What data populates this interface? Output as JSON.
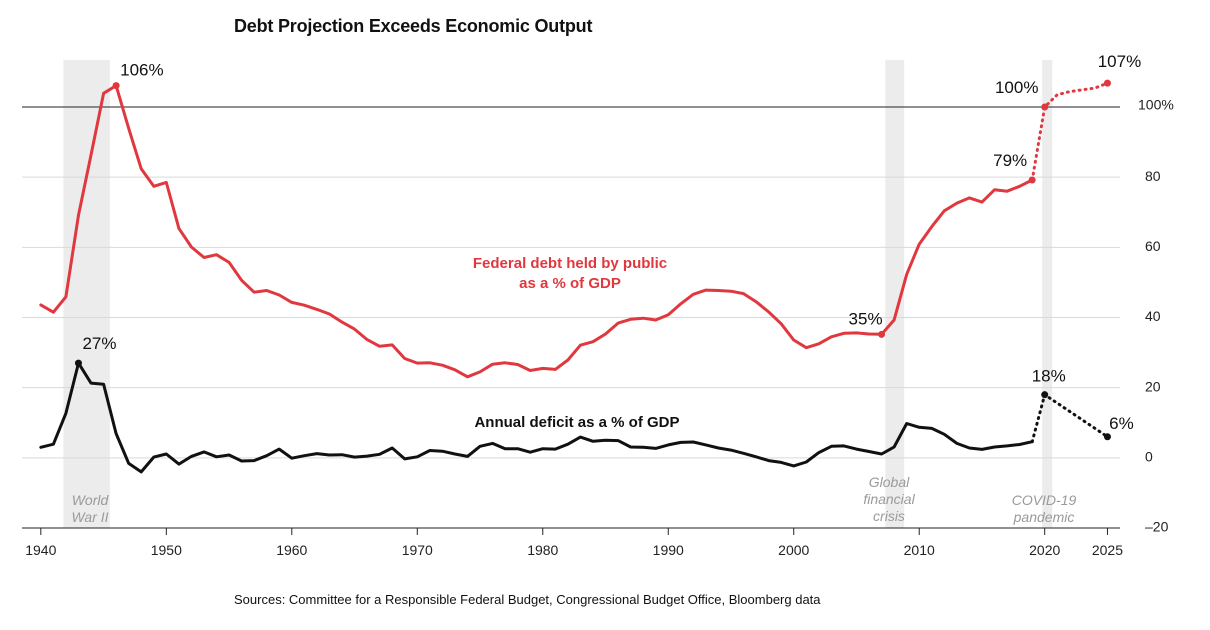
{
  "chart_data": {
    "type": "line",
    "title": "Debt Projection Exceeds Economic Output",
    "source": "Sources: Committee for a Responsible Federal Budget, Congressional Budget Office, Bloomberg data",
    "xlim": [
      1938.5,
      2026
    ],
    "ylim": [
      -20,
      110
    ],
    "x_ticks": [
      1940,
      1950,
      1960,
      1970,
      1980,
      1990,
      2000,
      2010,
      2020,
      2025
    ],
    "y_ticks": [
      {
        "value": 100,
        "label": "100%"
      },
      {
        "value": 80,
        "label": "80"
      },
      {
        "value": 60,
        "label": "60"
      },
      {
        "value": 40,
        "label": "40"
      },
      {
        "value": 20,
        "label": "20"
      },
      {
        "value": 0,
        "label": "0"
      },
      {
        "value": -20,
        "label": "–20"
      }
    ],
    "reference_line": 100,
    "colors": {
      "debt": "#e0383e",
      "deficit": "#111111",
      "shade": "#ececec",
      "grid": "#d9d9d9"
    },
    "shaded_periods": [
      {
        "start": 1941.8,
        "end": 1945.5,
        "label_lines": [
          "World",
          "War II"
        ]
      },
      {
        "start": 2007.3,
        "end": 2008.8,
        "label_lines": [
          "Global",
          "financial",
          "crisis"
        ]
      },
      {
        "start": 2019.8,
        "end": 2020.6,
        "label_lines": [
          "COVID-19",
          "pandemic"
        ]
      }
    ],
    "series": [
      {
        "label_lines": [
          "Federal debt held by public",
          "as a % of GDP"
        ],
        "color": "#e0383e",
        "x": [
          1940,
          1941,
          1942,
          1943,
          1944,
          1945,
          1946,
          1947,
          1948,
          1949,
          1950,
          1951,
          1952,
          1953,
          1954,
          1955,
          1956,
          1957,
          1958,
          1959,
          1960,
          1961,
          1962,
          1963,
          1964,
          1965,
          1966,
          1967,
          1968,
          1969,
          1970,
          1971,
          1972,
          1973,
          1974,
          1975,
          1976,
          1977,
          1978,
          1979,
          1980,
          1981,
          1982,
          1983,
          1984,
          1985,
          1986,
          1987,
          1988,
          1989,
          1990,
          1991,
          1992,
          1993,
          1994,
          1995,
          1996,
          1997,
          1998,
          1999,
          2000,
          2001,
          2002,
          2003,
          2004,
          2005,
          2006,
          2007,
          2008,
          2009,
          2010,
          2011,
          2012,
          2013,
          2014,
          2015,
          2016,
          2017,
          2018,
          2019
        ],
        "y": [
          43.6,
          41.5,
          45.9,
          69.2,
          86.3,
          103.9,
          106.1,
          93.9,
          82.4,
          77.4,
          78.5,
          65.4,
          60.1,
          57.1,
          57.9,
          55.7,
          50.6,
          47.2,
          47.7,
          46.4,
          44.3,
          43.5,
          42.3,
          41.0,
          38.7,
          36.7,
          33.7,
          31.8,
          32.2,
          28.3,
          27.0,
          27.1,
          26.4,
          25.1,
          23.1,
          24.5,
          26.7,
          27.1,
          26.6,
          24.9,
          25.5,
          25.2,
          27.9,
          32.1,
          33.1,
          35.3,
          38.4,
          39.5,
          39.8,
          39.3,
          40.8,
          43.9,
          46.6,
          47.8,
          47.7,
          47.5,
          46.8,
          44.5,
          41.6,
          38.2,
          33.6,
          31.4,
          32.5,
          34.5,
          35.5,
          35.6,
          35.3,
          35.2,
          39.3,
          52.3,
          60.9,
          65.9,
          70.4,
          72.6,
          74.1,
          72.9,
          76.4,
          76.0,
          77.4,
          79.2
        ],
        "projection_x": [
          2019,
          2020,
          2021,
          2022,
          2023,
          2024,
          2025
        ],
        "projection_y": [
          79.2,
          100.0,
          103.5,
          104.4,
          104.9,
          105.4,
          106.8
        ],
        "annotations": [
          {
            "x": 1946,
            "y": 106.1,
            "text": "106%"
          },
          {
            "x": 2007,
            "y": 35.2,
            "text": "35%"
          },
          {
            "x": 2019,
            "y": 79.2,
            "text": "79%"
          },
          {
            "x": 2020,
            "y": 100.0,
            "text": "100%"
          },
          {
            "x": 2025,
            "y": 106.8,
            "text": "107%"
          }
        ]
      },
      {
        "label_lines": [
          "Annual deficit as a % of GDP"
        ],
        "color": "#111111",
        "x": [
          1940,
          1941,
          1942,
          1943,
          1944,
          1945,
          1946,
          1947,
          1948,
          1949,
          1950,
          1951,
          1952,
          1953,
          1954,
          1955,
          1956,
          1957,
          1958,
          1959,
          1960,
          1961,
          1962,
          1963,
          1964,
          1965,
          1966,
          1967,
          1968,
          1969,
          1970,
          1971,
          1972,
          1973,
          1974,
          1975,
          1976,
          1977,
          1978,
          1979,
          1980,
          1981,
          1982,
          1983,
          1984,
          1985,
          1986,
          1987,
          1988,
          1989,
          1990,
          1991,
          1992,
          1993,
          1994,
          1995,
          1996,
          1997,
          1998,
          1999,
          2000,
          2001,
          2002,
          2003,
          2004,
          2005,
          2006,
          2007,
          2008,
          2009,
          2010,
          2011,
          2012,
          2013,
          2014,
          2015,
          2016,
          2017,
          2018,
          2019
        ],
        "y": [
          3.0,
          3.9,
          12.7,
          27.0,
          21.3,
          21.0,
          6.9,
          -1.6,
          -4.0,
          0.2,
          1.1,
          -1.8,
          0.4,
          1.7,
          0.3,
          0.8,
          -0.9,
          -0.8,
          0.6,
          2.5,
          -0.1,
          0.6,
          1.2,
          0.8,
          0.9,
          0.2,
          0.5,
          1.0,
          2.8,
          -0.3,
          0.3,
          2.1,
          1.9,
          1.1,
          0.4,
          3.3,
          4.1,
          2.6,
          2.6,
          1.6,
          2.6,
          2.5,
          3.9,
          5.9,
          4.7,
          5.0,
          4.9,
          3.1,
          3.0,
          2.7,
          3.7,
          4.4,
          4.5,
          3.7,
          2.8,
          2.2,
          1.3,
          0.3,
          -0.8,
          -1.3,
          -2.3,
          -1.2,
          1.5,
          3.3,
          3.4,
          2.5,
          1.8,
          1.1,
          3.1,
          9.8,
          8.7,
          8.4,
          6.7,
          4.1,
          2.8,
          2.4,
          3.1,
          3.4,
          3.8,
          4.6
        ],
        "projection_x": [
          2019,
          2020,
          2025
        ],
        "projection_y": [
          4.6,
          18.0,
          6.0
        ],
        "annotations": [
          {
            "x": 1943,
            "y": 27.0,
            "text": "27%"
          },
          {
            "x": 2020,
            "y": 18.0,
            "text": "18%"
          },
          {
            "x": 2025,
            "y": 6.0,
            "text": "6%"
          }
        ]
      }
    ]
  }
}
